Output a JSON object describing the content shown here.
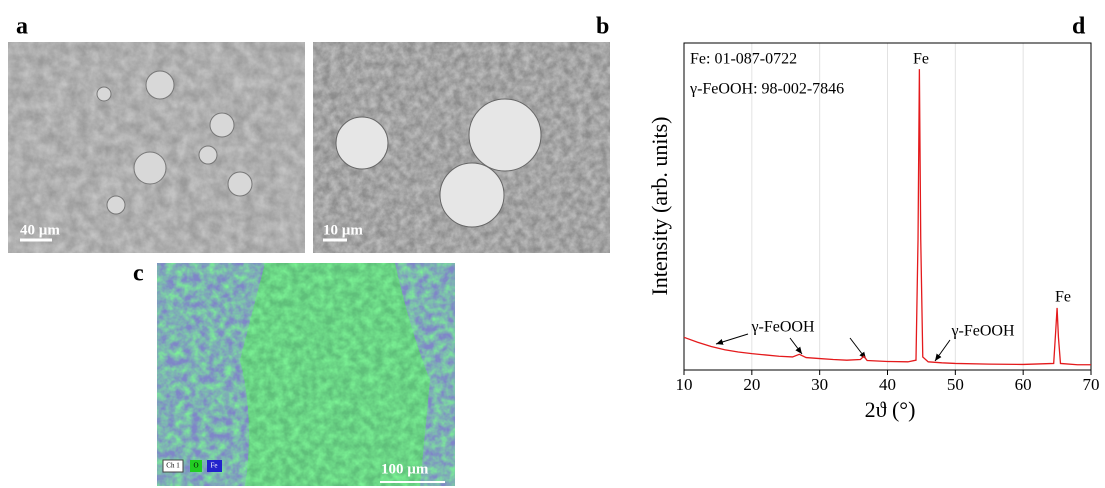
{
  "panels": {
    "a": {
      "label": "a",
      "scale_bar": "40 µm"
    },
    "b": {
      "label": "b",
      "scale_bar": "10 µm"
    },
    "c": {
      "label": "c",
      "scale_bar": "100 µm",
      "legend": [
        "Ch 1",
        "O",
        "Fe"
      ]
    },
    "d": {
      "label": "d"
    }
  },
  "chart_data": {
    "type": "line",
    "x": [
      10,
      12,
      14,
      16,
      18,
      20,
      22,
      24,
      26,
      27,
      28,
      30,
      32,
      34,
      36,
      36.5,
      37,
      40,
      43,
      44.2,
      44.5,
      44.7,
      44.9,
      45.2,
      46,
      48,
      50,
      55,
      60,
      64.5,
      64.8,
      65,
      65.2,
      65.5,
      68,
      70
    ],
    "values": [
      10,
      8.5,
      7.2,
      6.2,
      5.5,
      5,
      4.6,
      4.2,
      4,
      4.8,
      3.8,
      3.5,
      3.2,
      3,
      3.2,
      4.2,
      2.9,
      2.6,
      2.5,
      3,
      40,
      92,
      40,
      4,
      2.5,
      2.2,
      2,
      1.8,
      1.7,
      2,
      12,
      19,
      10,
      2,
      1.6,
      1.6
    ],
    "color": "#e41a1c",
    "xlabel": "2ϑ (°)",
    "ylabel": "Intensity (arb. units)",
    "xlim": [
      10,
      70
    ],
    "xticks": [
      10,
      20,
      30,
      40,
      50,
      60,
      70
    ],
    "ylim": [
      0,
      100
    ],
    "grid": true,
    "annotations": [
      "Fe: 01-087-0722",
      "γ-FeOOH: 98-002-7846",
      "Fe",
      "Fe",
      "γ-FeOOH",
      "γ-FeOOH"
    ]
  }
}
